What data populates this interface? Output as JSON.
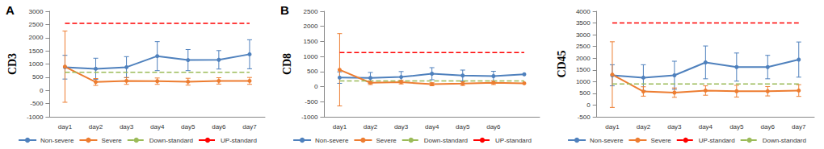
{
  "chart_data": [
    {
      "type": "line",
      "title": "A",
      "y_label": "CD3",
      "categories": [
        "day1",
        "day2",
        "day3",
        "day4",
        "day5",
        "day6",
        "day7"
      ],
      "ylim": [
        -1000,
        3000
      ],
      "yticks": [
        -1000,
        -500,
        0,
        500,
        1000,
        1500,
        2000,
        2500,
        3000
      ],
      "grid": false,
      "legend": "bottom",
      "series": [
        {
          "name": "Non-severe",
          "color": "#4f81bd",
          "marker": "circle",
          "line_style": "solid",
          "values": [
            880,
            820,
            880,
            1300,
            1150,
            1160,
            1370
          ],
          "errors": [
            450,
            400,
            400,
            550,
            400,
            350,
            550
          ]
        },
        {
          "name": "Severe",
          "color": "#ed7d31",
          "marker": "circle",
          "line_style": "solid",
          "values": [
            900,
            320,
            360,
            350,
            330,
            360,
            360
          ],
          "errors": [
            1350,
            130,
            130,
            120,
            130,
            120,
            130
          ]
        },
        {
          "name": "Down-standard",
          "color": "#9bbb59",
          "marker": "none",
          "line_style": "dashed",
          "values": [
            690,
            690,
            690,
            690,
            690,
            690,
            690
          ]
        },
        {
          "name": "UP-standard",
          "color": "#ff0000",
          "marker": "none",
          "line_style": "dashed",
          "values": [
            2540,
            2540,
            2540,
            2540,
            2540,
            2540,
            2540
          ]
        }
      ]
    },
    {
      "type": "line",
      "title": "B",
      "y_label": "CD8",
      "categories": [
        "day1",
        "day2",
        "day3",
        "day4",
        "day5",
        "day6",
        null
      ],
      "ylim": [
        -1000,
        2500
      ],
      "yticks": [
        -1000,
        -500,
        0,
        500,
        1000,
        1500,
        2000,
        2500
      ],
      "grid": false,
      "legend": "bottom",
      "series": [
        {
          "name": "Non-severe",
          "color": "#4f81bd",
          "marker": "circle",
          "line_style": "solid",
          "values": [
            300,
            290,
            320,
            430,
            370,
            350,
            410
          ],
          "errors": [
            190,
            180,
            180,
            200,
            180,
            160,
            null
          ]
        },
        {
          "name": "Severe",
          "color": "#ed7d31",
          "marker": "circle",
          "line_style": "solid",
          "values": [
            560,
            130,
            150,
            80,
            100,
            130,
            110
          ],
          "errors": [
            1200,
            60,
            60,
            50,
            60,
            60,
            null
          ]
        },
        {
          "name": "Down-standard",
          "color": "#9bbb59",
          "marker": "none",
          "line_style": "dashed",
          "values": [
            190,
            190,
            190,
            190,
            190,
            190,
            190
          ]
        },
        {
          "name": "UP-standard",
          "color": "#ff0000",
          "marker": "none",
          "line_style": "dashed",
          "values": [
            1130,
            1130,
            1130,
            1130,
            1130,
            1130,
            1130
          ]
        }
      ]
    },
    {
      "type": "line",
      "y_label": "CD45",
      "categories": [
        "day1",
        "day2",
        "day3",
        "day4",
        "day5",
        "day6",
        "day7"
      ],
      "ylim": [
        -500,
        4000
      ],
      "yticks": [
        -500,
        0,
        500,
        1000,
        1500,
        2000,
        2500,
        3000,
        3500,
        4000
      ],
      "grid": false,
      "legend": "bottom",
      "series": [
        {
          "name": "Non-severe",
          "color": "#4f81bd",
          "marker": "circle",
          "line_style": "solid",
          "values": [
            1270,
            1170,
            1270,
            1820,
            1620,
            1620,
            1940
          ],
          "errors": [
            450,
            550,
            600,
            700,
            600,
            500,
            750
          ]
        },
        {
          "name": "Severe",
          "color": "#ed7d31",
          "marker": "circle",
          "line_style": "solid",
          "values": [
            1300,
            580,
            530,
            620,
            590,
            590,
            620
          ],
          "errors": [
            1400,
            200,
            200,
            200,
            250,
            200,
            250
          ]
        },
        {
          "name": "UP-standard",
          "color": "#ff0000",
          "marker": "none",
          "line_style": "dashed",
          "values": [
            3500,
            3500,
            3500,
            3500,
            3500,
            3500,
            3500
          ]
        },
        {
          "name": "Down-standard",
          "color": "#9bbb59",
          "marker": "none",
          "line_style": "dashed",
          "values": [
            900,
            900,
            900,
            900,
            900,
            900,
            900
          ]
        }
      ]
    }
  ]
}
